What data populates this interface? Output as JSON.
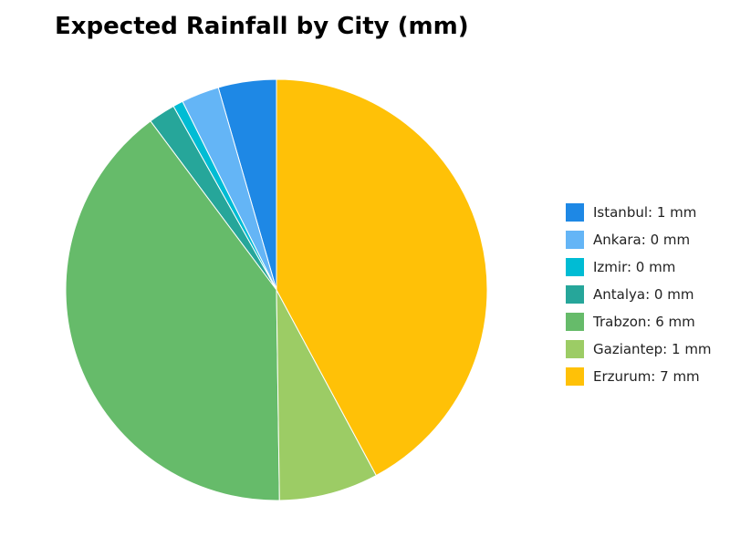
{
  "chart_data": {
    "type": "pie",
    "title": "Expected Rainfall by City (mm)",
    "unit": "mm",
    "slices": [
      {
        "label": "Istanbul",
        "value": 0.69,
        "legend": "Istanbul: 1 mm",
        "color": "#1e88e5"
      },
      {
        "label": "Ankara",
        "value": 0.45,
        "legend": "Ankara: 0 mm",
        "color": "#64b5f6"
      },
      {
        "label": "Izmir",
        "value": 0.12,
        "legend": "Izmir: 0 mm",
        "color": "#00bcd4"
      },
      {
        "label": "Antalya",
        "value": 0.32,
        "legend": "Antalya: 0 mm",
        "color": "#26a69a"
      },
      {
        "label": "Trabzon",
        "value": 6.2,
        "legend": "Trabzon: 6 mm",
        "color": "#66bb6a"
      },
      {
        "label": "Gaziantep",
        "value": 1.18,
        "legend": "Gaziantep: 1 mm",
        "color": "#9ccc65"
      },
      {
        "label": "Erzurum",
        "value": 6.53,
        "legend": "Erzurum: 7 mm",
        "color": "#ffc107"
      }
    ],
    "start_angle": "12 o'clock",
    "direction": "counterclockwise",
    "legend_position": "right"
  }
}
